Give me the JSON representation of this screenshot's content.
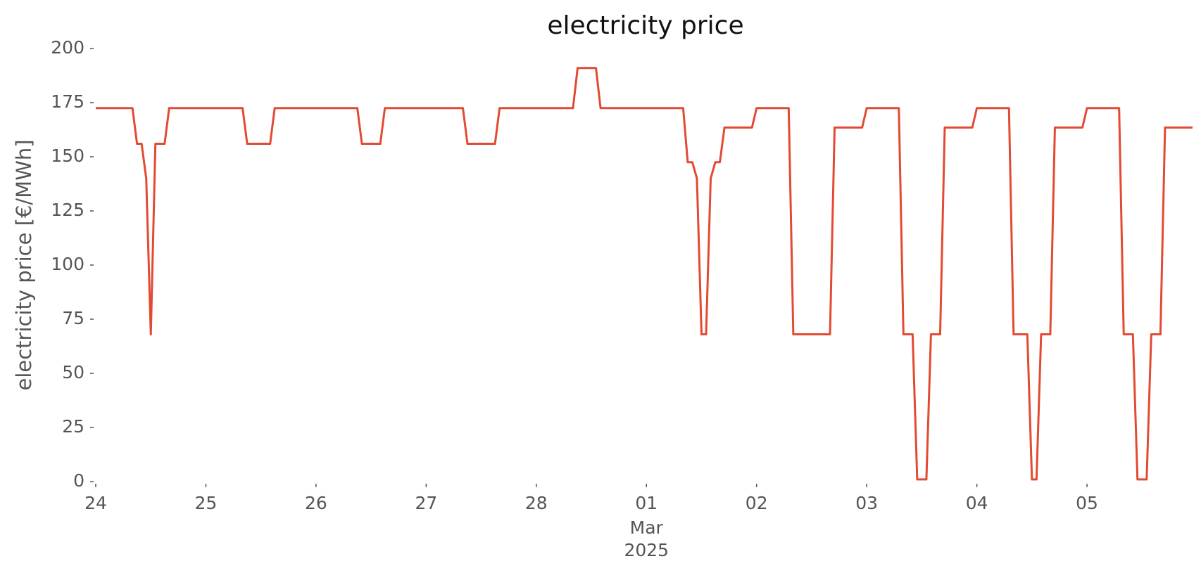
{
  "chart_data": {
    "type": "line",
    "title": "electricity price",
    "ylabel": "electricity price [€/MWh]",
    "x": [
      0,
      8,
      9,
      10,
      11,
      12,
      13,
      15,
      16,
      32,
      33,
      38,
      39,
      57,
      58,
      62,
      63,
      80,
      81,
      87,
      88,
      104,
      105,
      109,
      110,
      128,
      129,
      130,
      131,
      132,
      133,
      134,
      135,
      136,
      137,
      143,
      144,
      151,
      152,
      160,
      161,
      167,
      168,
      175,
      176,
      178,
      179,
      181,
      182,
      184,
      185,
      191,
      192,
      199,
      200,
      203,
      204,
      205,
      206,
      208,
      209,
      215,
      216,
      223,
      224,
      226,
      227,
      229,
      230,
      232,
      233,
      239
    ],
    "series": [
      {
        "name": "electricity price",
        "color": "#e24a33",
        "values": [
          172.5,
          172.5,
          156,
          156,
          140,
          68,
          156,
          156,
          172.5,
          172.5,
          156,
          156,
          172.5,
          172.5,
          156,
          156,
          172.5,
          172.5,
          156,
          156,
          172.5,
          172.5,
          191,
          191,
          172.5,
          172.5,
          147.5,
          147.5,
          140,
          68,
          68,
          140,
          147.5,
          147.5,
          163.5,
          163.5,
          172.5,
          172.5,
          68,
          68,
          163.5,
          163.5,
          172.5,
          172.5,
          68,
          68,
          1,
          1,
          68,
          68,
          163.5,
          163.5,
          172.5,
          172.5,
          68,
          68,
          1,
          1,
          68,
          68,
          163.5,
          163.5,
          172.5,
          172.5,
          68,
          68,
          1,
          1,
          68,
          68,
          163.5,
          163.5
        ]
      }
    ],
    "xlim": [
      0,
      239
    ],
    "xticks": [
      {
        "value": 0,
        "label": "24"
      },
      {
        "value": 24,
        "label": "25"
      },
      {
        "value": 48,
        "label": "26"
      },
      {
        "value": 72,
        "label": "27"
      },
      {
        "value": 96,
        "label": "28"
      },
      {
        "value": 120,
        "label": "01"
      },
      {
        "value": 144,
        "label": "02"
      },
      {
        "value": 168,
        "label": "03"
      },
      {
        "value": 192,
        "label": "04"
      },
      {
        "value": 216,
        "label": "05"
      }
    ],
    "x_tick_sublabels": [
      "Mar",
      "2025"
    ],
    "ylim": [
      0,
      200
    ],
    "yticks": [
      0,
      25,
      50,
      75,
      100,
      125,
      150,
      175,
      200
    ],
    "grid": false
  }
}
